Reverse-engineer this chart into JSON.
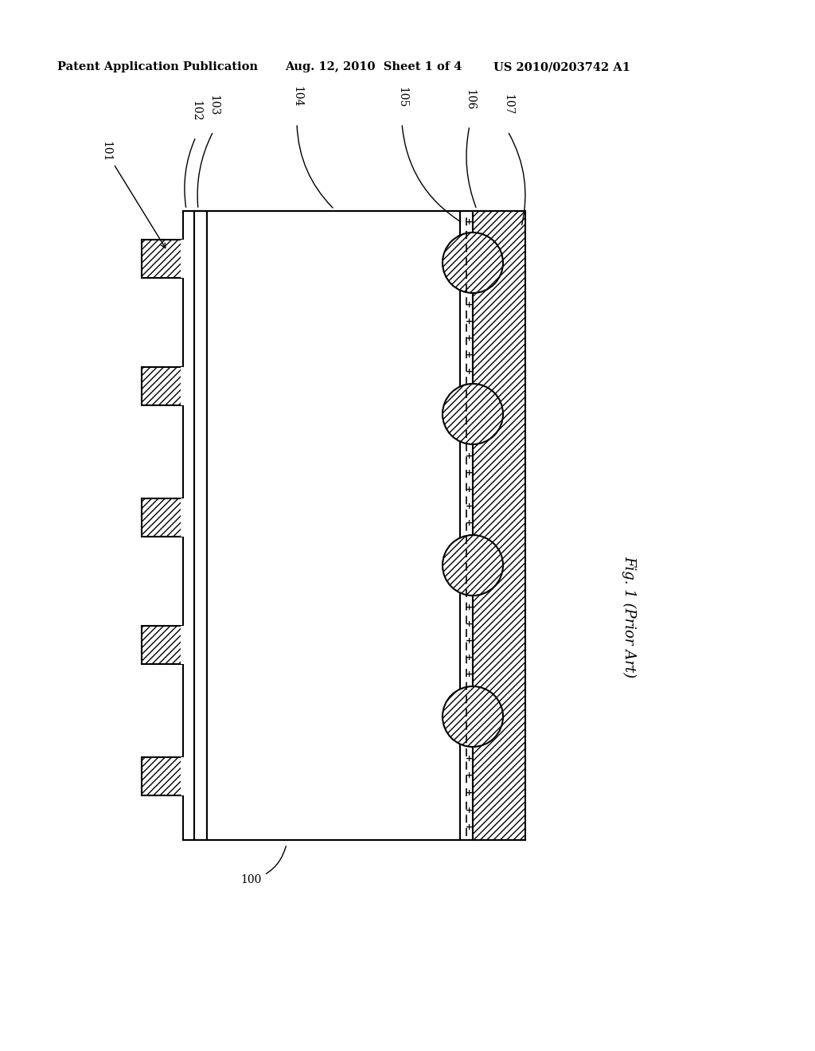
{
  "bg_color": "#ffffff",
  "header_text1": "Patent Application Publication",
  "header_text2": "Aug. 12, 2010  Sheet 1 of 4",
  "header_text3": "US 2010/0203742 A1",
  "fig_label": "Fig. 1 (Prior Art)",
  "label_100": "100",
  "label_101": "101",
  "label_102": "102",
  "label_103": "103",
  "label_104": "104",
  "label_105": "105",
  "label_106": "106",
  "label_107": "107",
  "line_color": "#000000"
}
